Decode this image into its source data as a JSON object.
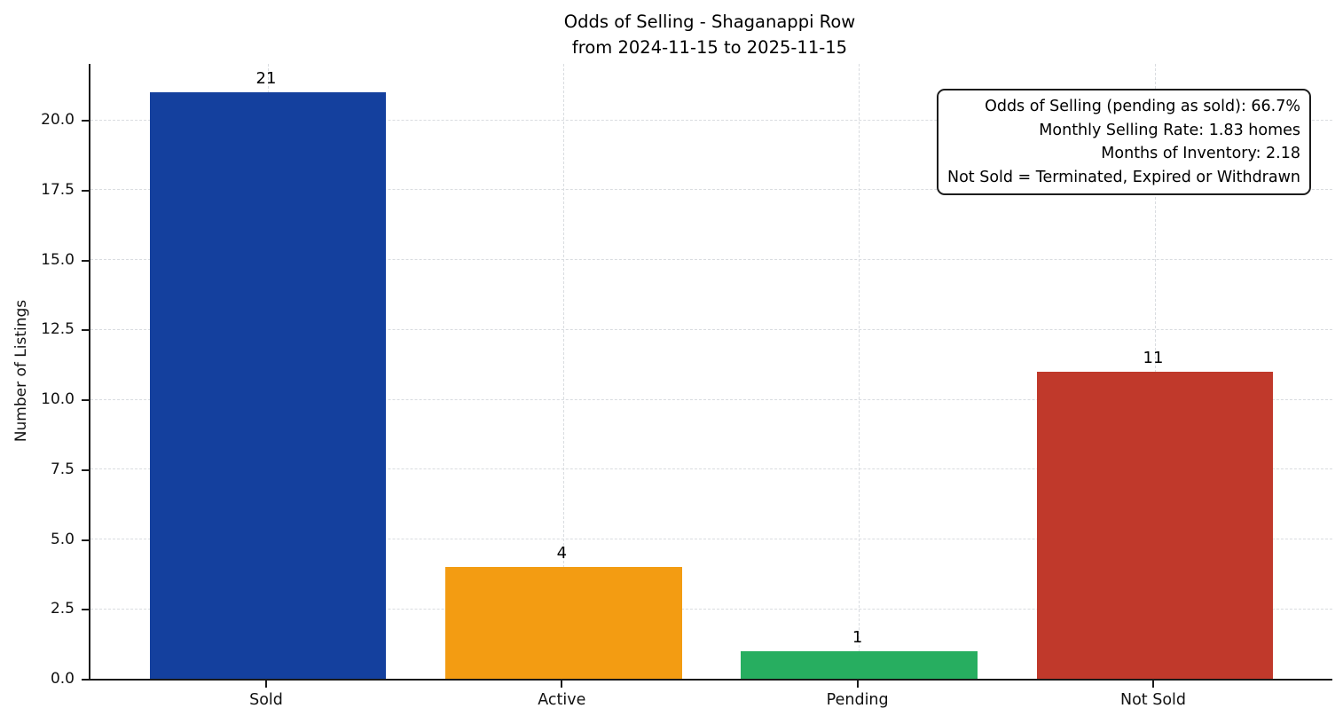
{
  "title": {
    "line1": "Odds of Selling - Shaganappi Row",
    "line2": "from 2024-11-15 to 2025-11-15"
  },
  "annotation": {
    "lines": [
      "Odds of Selling (pending as sold): 66.7%",
      "Monthly Selling Rate: 1.83 homes",
      "Months of Inventory: 2.18",
      "Not Sold = Terminated, Expired or Withdrawn"
    ]
  },
  "chart_data": {
    "type": "bar",
    "title": "Odds of Selling - Shaganappi Row\nfrom 2024-11-15 to 2025-11-15",
    "categories": [
      "Sold",
      "Active",
      "Pending",
      "Not Sold"
    ],
    "values": [
      21,
      4,
      1,
      11
    ],
    "bar_value_labels": [
      "21",
      "4",
      "1",
      "11"
    ],
    "bar_colors": [
      "#14409E",
      "#F39C12",
      "#27AE60",
      "#C0392B"
    ],
    "xlabel": "",
    "ylabel": "Number of Listings",
    "ylim": [
      0,
      22
    ],
    "yticks": [
      0,
      2.5,
      5,
      7.5,
      10,
      12.5,
      15,
      17.5,
      20
    ],
    "ytick_labels": [
      "0.0",
      "2.5",
      "5.0",
      "7.5",
      "10.0",
      "12.5",
      "15.0",
      "17.5",
      "20.0"
    ],
    "grid": true,
    "grid_style": "dashed",
    "legend": null,
    "spines": [
      "left",
      "bottom"
    ],
    "annotation_lines": [
      "Odds of Selling (pending as sold): 66.7%",
      "Monthly Selling Rate: 1.83 homes",
      "Months of Inventory: 2.18",
      "Not Sold = Terminated, Expired or Withdrawn"
    ]
  }
}
